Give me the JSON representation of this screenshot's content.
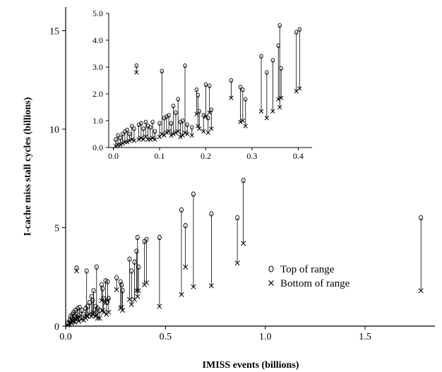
{
  "chart_data": [
    {
      "type": "scatter",
      "title": "",
      "xlabel": "IMISS events (billions)",
      "ylabel": "I-cache miss stall cycles (billions)",
      "xlim": [
        0,
        1.85
      ],
      "ylim": [
        0,
        16.2
      ],
      "xticks": [
        0.0,
        0.5,
        1.0,
        1.5
      ],
      "xtick_labels": [
        "0.0",
        "0.5",
        "1.0",
        "1.5"
      ],
      "yticks": [
        0,
        5,
        10,
        15
      ],
      "ytick_labels": [
        "0",
        "5",
        "10",
        "15"
      ],
      "grid": false,
      "legend_position": "lower-right",
      "series": [
        {
          "name": "Top of range",
          "marker": "circle"
        },
        {
          "name": "Bottom of range",
          "marker": "x"
        }
      ],
      "ranges": [
        {
          "x": 0.01,
          "top": 0.15,
          "bottom": 0.05
        },
        {
          "x": 0.02,
          "top": 0.3,
          "bottom": 0.1
        },
        {
          "x": 0.025,
          "top": 0.5,
          "bottom": 0.2
        },
        {
          "x": 0.03,
          "top": 0.4,
          "bottom": 0.15
        },
        {
          "x": 0.035,
          "top": 0.6,
          "bottom": 0.25
        },
        {
          "x": 0.04,
          "top": 0.7,
          "bottom": 0.3
        },
        {
          "x": 0.045,
          "top": 0.5,
          "bottom": 0.2
        },
        {
          "x": 0.05,
          "top": 0.8,
          "bottom": 0.35
        },
        {
          "x": 0.055,
          "top": 2.95,
          "bottom": 2.8
        },
        {
          "x": 0.06,
          "top": 0.9,
          "bottom": 0.4
        },
        {
          "x": 0.065,
          "top": 0.55,
          "bottom": 0.25
        },
        {
          "x": 0.07,
          "top": 0.95,
          "bottom": 0.45
        },
        {
          "x": 0.08,
          "top": 0.8,
          "bottom": 0.35
        },
        {
          "x": 0.09,
          "top": 0.6,
          "bottom": 0.3
        },
        {
          "x": 0.1,
          "top": 0.9,
          "bottom": 0.4
        },
        {
          "x": 0.105,
          "top": 2.8,
          "bottom": 0.5
        },
        {
          "x": 0.11,
          "top": 1.0,
          "bottom": 0.5
        },
        {
          "x": 0.12,
          "top": 1.2,
          "bottom": 0.6
        },
        {
          "x": 0.13,
          "top": 1.5,
          "bottom": 0.5
        },
        {
          "x": 0.135,
          "top": 1.3,
          "bottom": 0.6
        },
        {
          "x": 0.14,
          "top": 1.8,
          "bottom": 0.7
        },
        {
          "x": 0.15,
          "top": 1.0,
          "bottom": 0.5
        },
        {
          "x": 0.155,
          "top": 3.0,
          "bottom": 0.55
        },
        {
          "x": 0.16,
          "top": 0.9,
          "bottom": 0.4
        },
        {
          "x": 0.17,
          "top": 0.8,
          "bottom": 0.4
        },
        {
          "x": 0.18,
          "top": 2.1,
          "bottom": 1.3
        },
        {
          "x": 0.185,
          "top": 1.9,
          "bottom": 0.8
        },
        {
          "x": 0.19,
          "top": 1.4,
          "bottom": 0.7
        },
        {
          "x": 0.2,
          "top": 2.3,
          "bottom": 1.2
        },
        {
          "x": 0.205,
          "top": 1.2,
          "bottom": 0.6
        },
        {
          "x": 0.21,
          "top": 2.25,
          "bottom": 1.3
        },
        {
          "x": 0.215,
          "top": 1.4,
          "bottom": 0.7
        },
        {
          "x": 0.255,
          "top": 2.45,
          "bottom": 1.85
        },
        {
          "x": 0.275,
          "top": 2.25,
          "bottom": 0.9
        },
        {
          "x": 0.28,
          "top": 2.1,
          "bottom": 0.95
        },
        {
          "x": 0.285,
          "top": 1.8,
          "bottom": 0.8
        },
        {
          "x": 0.32,
          "top": 3.4,
          "bottom": 1.35
        },
        {
          "x": 0.33,
          "top": 2.8,
          "bottom": 1.1
        },
        {
          "x": 0.345,
          "top": 3.25,
          "bottom": 1.35
        },
        {
          "x": 0.355,
          "top": 3.8,
          "bottom": 1.8
        },
        {
          "x": 0.36,
          "top": 4.5,
          "bottom": 1.5
        },
        {
          "x": 0.365,
          "top": 3.0,
          "bottom": 1.8
        },
        {
          "x": 0.395,
          "top": 4.3,
          "bottom": 2.1
        },
        {
          "x": 0.405,
          "top": 4.4,
          "bottom": 2.2
        },
        {
          "x": 0.47,
          "top": 4.5,
          "bottom": 1.0
        },
        {
          "x": 0.58,
          "top": 5.9,
          "bottom": 1.6
        },
        {
          "x": 0.6,
          "top": 5.1,
          "bottom": 3.0
        },
        {
          "x": 0.64,
          "top": 6.7,
          "bottom": 2.0
        },
        {
          "x": 0.73,
          "top": 5.7,
          "bottom": 2.05
        },
        {
          "x": 0.86,
          "top": 5.5,
          "bottom": 3.2
        },
        {
          "x": 0.89,
          "top": 7.4,
          "bottom": 4.2
        },
        {
          "x": 1.78,
          "top": 5.5,
          "bottom": 1.8
        }
      ]
    },
    {
      "type": "scatter",
      "title": "",
      "xlabel": "",
      "ylabel": "",
      "xlim": [
        -0.01,
        0.43
      ],
      "ylim": [
        0,
        5.0
      ],
      "xticks": [
        0.0,
        0.1,
        0.2,
        0.3,
        0.4
      ],
      "xtick_labels": [
        "0.0",
        "0.1",
        "0.2",
        "0.3",
        "0.4"
      ],
      "yticks": [
        0,
        1,
        2,
        3,
        4,
        5
      ],
      "ytick_labels": [
        "0.0",
        "1.0",
        "2.0",
        "3.0",
        "4.0",
        "5.0"
      ],
      "grid": false,
      "series": [
        {
          "name": "Top of range",
          "marker": "circle"
        },
        {
          "name": "Bottom of range",
          "marker": "x"
        }
      ],
      "ranges": [
        {
          "x": 0.005,
          "top": 0.3,
          "bottom": 0.05
        },
        {
          "x": 0.01,
          "top": 0.45,
          "bottom": 0.1
        },
        {
          "x": 0.015,
          "top": 0.35,
          "bottom": 0.1
        },
        {
          "x": 0.02,
          "top": 0.5,
          "bottom": 0.15
        },
        {
          "x": 0.025,
          "top": 0.6,
          "bottom": 0.2
        },
        {
          "x": 0.03,
          "top": 0.65,
          "bottom": 0.2
        },
        {
          "x": 0.035,
          "top": 0.5,
          "bottom": 0.25
        },
        {
          "x": 0.04,
          "top": 0.8,
          "bottom": 0.3
        },
        {
          "x": 0.045,
          "top": 0.7,
          "bottom": 0.25
        },
        {
          "x": 0.05,
          "top": 3.05,
          "bottom": 2.8
        },
        {
          "x": 0.055,
          "top": 0.85,
          "bottom": 0.3
        },
        {
          "x": 0.06,
          "top": 0.9,
          "bottom": 0.35
        },
        {
          "x": 0.065,
          "top": 0.7,
          "bottom": 0.3
        },
        {
          "x": 0.07,
          "top": 0.95,
          "bottom": 0.4
        },
        {
          "x": 0.075,
          "top": 0.8,
          "bottom": 0.3
        },
        {
          "x": 0.08,
          "top": 0.75,
          "bottom": 0.3
        },
        {
          "x": 0.085,
          "top": 0.95,
          "bottom": 0.35
        },
        {
          "x": 0.09,
          "top": 0.6,
          "bottom": 0.3
        },
        {
          "x": 0.1,
          "top": 0.9,
          "bottom": 0.4
        },
        {
          "x": 0.105,
          "top": 2.85,
          "bottom": 0.5
        },
        {
          "x": 0.11,
          "top": 1.1,
          "bottom": 0.45
        },
        {
          "x": 0.115,
          "top": 1.15,
          "bottom": 0.55
        },
        {
          "x": 0.12,
          "top": 1.2,
          "bottom": 0.6
        },
        {
          "x": 0.125,
          "top": 0.9,
          "bottom": 0.45
        },
        {
          "x": 0.13,
          "top": 1.55,
          "bottom": 0.5
        },
        {
          "x": 0.135,
          "top": 1.3,
          "bottom": 0.55
        },
        {
          "x": 0.14,
          "top": 1.8,
          "bottom": 0.6
        },
        {
          "x": 0.145,
          "top": 0.95,
          "bottom": 0.4
        },
        {
          "x": 0.15,
          "top": 1.0,
          "bottom": 0.45
        },
        {
          "x": 0.155,
          "top": 3.05,
          "bottom": 0.55
        },
        {
          "x": 0.16,
          "top": 0.85,
          "bottom": 0.5
        },
        {
          "x": 0.17,
          "top": 0.75,
          "bottom": 0.45
        },
        {
          "x": 0.18,
          "top": 2.15,
          "bottom": 1.25
        },
        {
          "x": 0.183,
          "top": 1.95,
          "bottom": 0.8
        },
        {
          "x": 0.186,
          "top": 1.35,
          "bottom": 0.7
        },
        {
          "x": 0.195,
          "top": 1.2,
          "bottom": 0.6
        },
        {
          "x": 0.2,
          "top": 2.35,
          "bottom": 1.15
        },
        {
          "x": 0.205,
          "top": 1.1,
          "bottom": 0.55
        },
        {
          "x": 0.208,
          "top": 2.3,
          "bottom": 1.3
        },
        {
          "x": 0.212,
          "top": 1.4,
          "bottom": 0.7
        },
        {
          "x": 0.255,
          "top": 2.5,
          "bottom": 1.85
        },
        {
          "x": 0.275,
          "top": 2.25,
          "bottom": 0.95
        },
        {
          "x": 0.28,
          "top": 2.15,
          "bottom": 1.0
        },
        {
          "x": 0.286,
          "top": 1.8,
          "bottom": 0.8
        },
        {
          "x": 0.32,
          "top": 3.4,
          "bottom": 1.35
        },
        {
          "x": 0.332,
          "top": 2.8,
          "bottom": 1.1
        },
        {
          "x": 0.345,
          "top": 3.25,
          "bottom": 1.35
        },
        {
          "x": 0.357,
          "top": 3.8,
          "bottom": 1.8
        },
        {
          "x": 0.36,
          "top": 4.55,
          "bottom": 1.5
        },
        {
          "x": 0.363,
          "top": 2.95,
          "bottom": 1.85
        },
        {
          "x": 0.396,
          "top": 4.3,
          "bottom": 2.1
        },
        {
          "x": 0.403,
          "top": 4.4,
          "bottom": 2.2
        }
      ]
    }
  ]
}
